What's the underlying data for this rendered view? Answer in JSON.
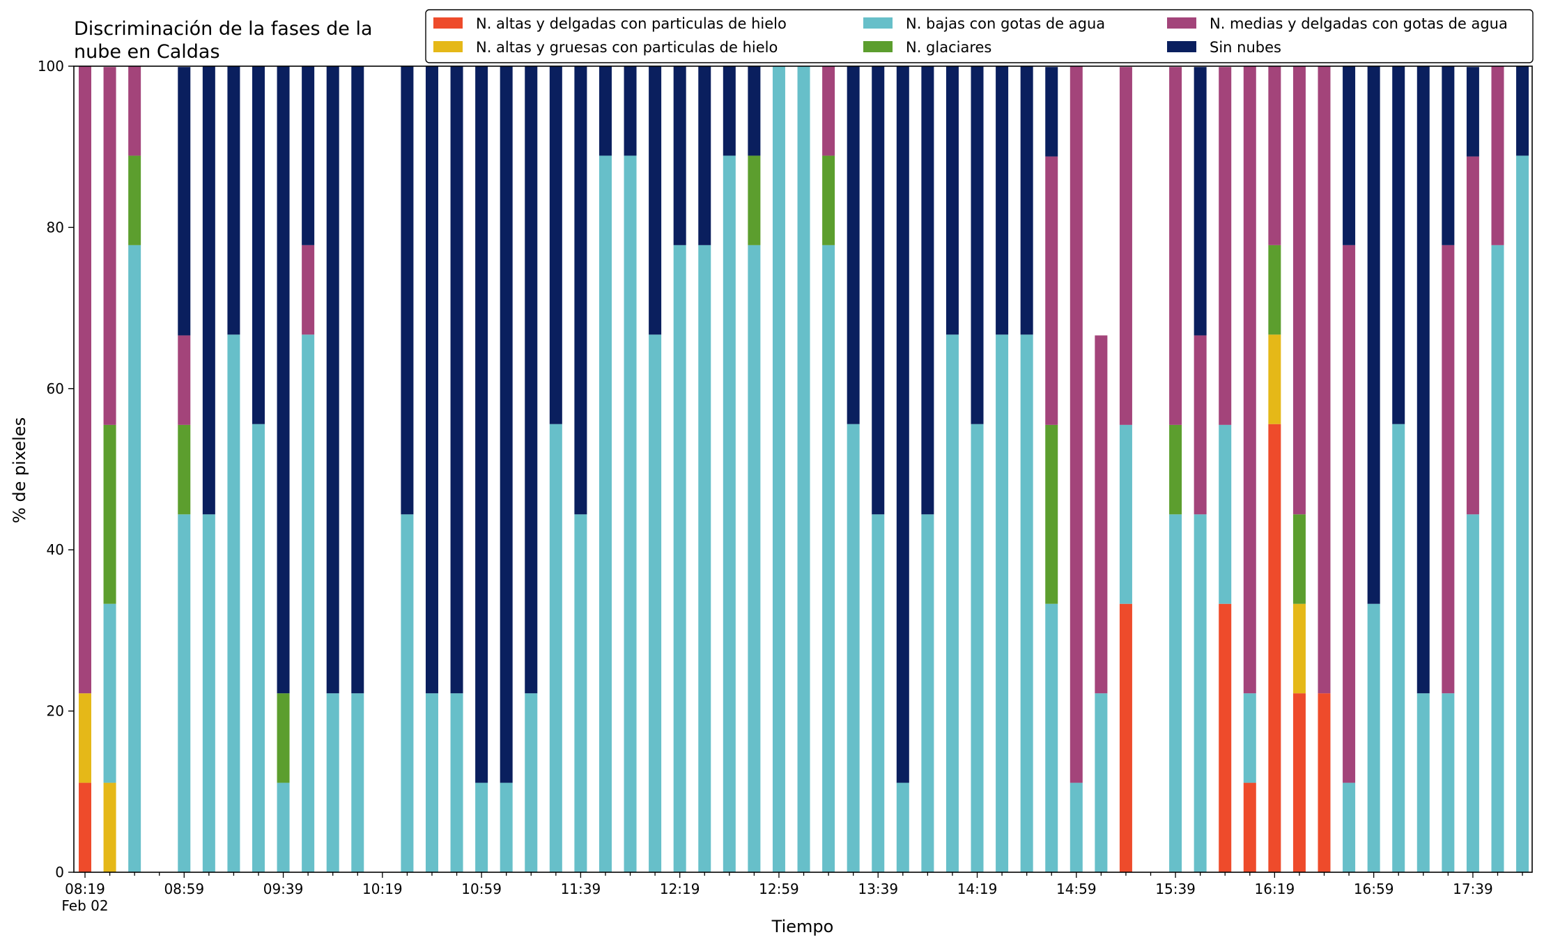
{
  "chart_data": {
    "type": "bar",
    "stacked": true,
    "title": "Discriminación de la fases de la nube en Caldas",
    "title_lines": [
      "Discriminación de la fases de la",
      "nube en Caldas"
    ],
    "xlabel": "Tiempo",
    "ylabel": "% de pixeles",
    "ylim": [
      0,
      100
    ],
    "yticks": [
      0,
      20,
      40,
      60,
      80,
      100
    ],
    "x_start": "08:19",
    "x_step_minutes": 10,
    "xtick_labels": [
      "08:19",
      "08:59",
      "09:39",
      "10:19",
      "10:59",
      "11:39",
      "12:19",
      "12:59",
      "13:39",
      "14:19",
      "14:59",
      "15:39",
      "16:19",
      "16:59",
      "17:39"
    ],
    "xtick_sublabel": "Feb 02",
    "grid": false,
    "legend_position": "top",
    "series": [
      {
        "name": "N. altas y delgadas con particulas de hielo",
        "color": "#ee4b2b",
        "values": [
          11.1,
          0,
          0,
          null,
          0,
          0,
          0,
          0,
          0,
          0,
          0,
          0,
          null,
          0,
          0,
          0,
          0,
          0,
          0,
          0,
          0,
          0,
          0,
          0,
          0,
          0,
          0,
          0,
          0,
          0,
          0,
          0,
          0,
          0,
          0,
          0,
          0,
          0,
          0,
          0,
          0,
          0,
          33.3,
          null,
          0,
          0,
          33.3,
          11.1,
          55.6,
          22.2,
          22.2,
          0,
          0,
          0,
          0,
          0,
          0,
          0,
          0
        ]
      },
      {
        "name": "N. altas y gruesas con particulas de hielo",
        "color": "#e5b818",
        "values": [
          11.1,
          11.1,
          0,
          null,
          0,
          0,
          0,
          0,
          0,
          0,
          0,
          0,
          null,
          0,
          0,
          0,
          0,
          0,
          0,
          0,
          0,
          0,
          0,
          0,
          0,
          0,
          0,
          0,
          0,
          0,
          0,
          0,
          0,
          0,
          0,
          0,
          0,
          0,
          0,
          0,
          0,
          0,
          0,
          null,
          0,
          0,
          0,
          0,
          11.1,
          11.1,
          0,
          0,
          0,
          0,
          0,
          0,
          0,
          0,
          0
        ]
      },
      {
        "name": "N. bajas con gotas de agua",
        "color": "#67bfc9",
        "values": [
          0,
          22.2,
          77.8,
          null,
          44.4,
          44.4,
          66.7,
          55.6,
          11.1,
          66.7,
          22.2,
          22.2,
          null,
          44.4,
          22.2,
          22.2,
          11.1,
          11.1,
          22.2,
          55.6,
          44.4,
          88.9,
          88.9,
          66.7,
          77.8,
          77.8,
          88.9,
          77.8,
          100,
          100,
          77.8,
          55.6,
          44.4,
          11.1,
          44.4,
          66.7,
          55.6,
          66.7,
          66.7,
          33.3,
          11.1,
          22.2,
          22.2,
          null,
          44.4,
          44.4,
          22.2,
          11.1,
          0,
          0,
          0,
          11.1,
          33.3,
          55.6,
          22.2,
          22.2,
          44.4,
          77.8,
          88.9
        ]
      },
      {
        "name": "N. glaciares",
        "color": "#5c9e2e",
        "values": [
          0,
          22.2,
          11.1,
          null,
          11.1,
          0,
          0,
          0,
          11.1,
          0,
          0,
          0,
          null,
          0,
          0,
          0,
          0,
          0,
          0,
          0,
          0,
          0,
          0,
          0,
          0,
          0,
          0,
          11.1,
          0,
          0,
          11.1,
          0,
          0,
          0,
          0,
          0,
          0,
          0,
          0,
          22.2,
          0,
          0,
          0,
          null,
          11.1,
          0,
          0,
          0,
          11.1,
          11.1,
          0,
          0,
          0,
          0,
          0,
          0,
          0,
          0,
          0
        ]
      },
      {
        "name": "N. medias y delgadas con gotas de agua",
        "color": "#a3447a",
        "values": [
          77.8,
          44.4,
          11.1,
          null,
          11.1,
          0,
          0,
          0,
          0,
          11.1,
          0,
          0,
          null,
          0,
          0,
          0,
          0,
          0,
          0,
          0,
          0,
          0,
          0,
          0,
          0,
          0,
          0,
          0,
          0,
          0,
          11.1,
          0,
          0,
          0,
          0,
          0,
          0,
          0,
          0,
          33.3,
          88.9,
          44.4,
          44.4,
          null,
          44.4,
          22.2,
          44.4,
          77.8,
          22.2,
          55.6,
          77.8,
          66.7,
          0,
          0,
          0,
          55.6,
          44.4,
          22.2,
          0
        ]
      },
      {
        "name": "Sin nubes",
        "color": "#0a1f5e",
        "values": [
          0,
          0,
          0,
          null,
          33.3,
          55.6,
          33.3,
          44.4,
          77.8,
          22.2,
          77.8,
          77.8,
          null,
          55.6,
          77.8,
          77.8,
          88.9,
          88.9,
          77.8,
          44.4,
          55.6,
          11.1,
          11.1,
          33.3,
          22.2,
          22.2,
          11.1,
          11.1,
          0,
          0,
          0,
          44.4,
          55.6,
          88.9,
          55.6,
          33.3,
          44.4,
          33.3,
          33.3,
          11.1,
          0,
          0,
          0,
          null,
          0,
          33.3,
          0,
          0,
          0,
          0,
          0,
          22.2,
          66.7,
          44.4,
          77.8,
          22.2,
          11.1,
          0,
          11.1
        ]
      }
    ]
  }
}
